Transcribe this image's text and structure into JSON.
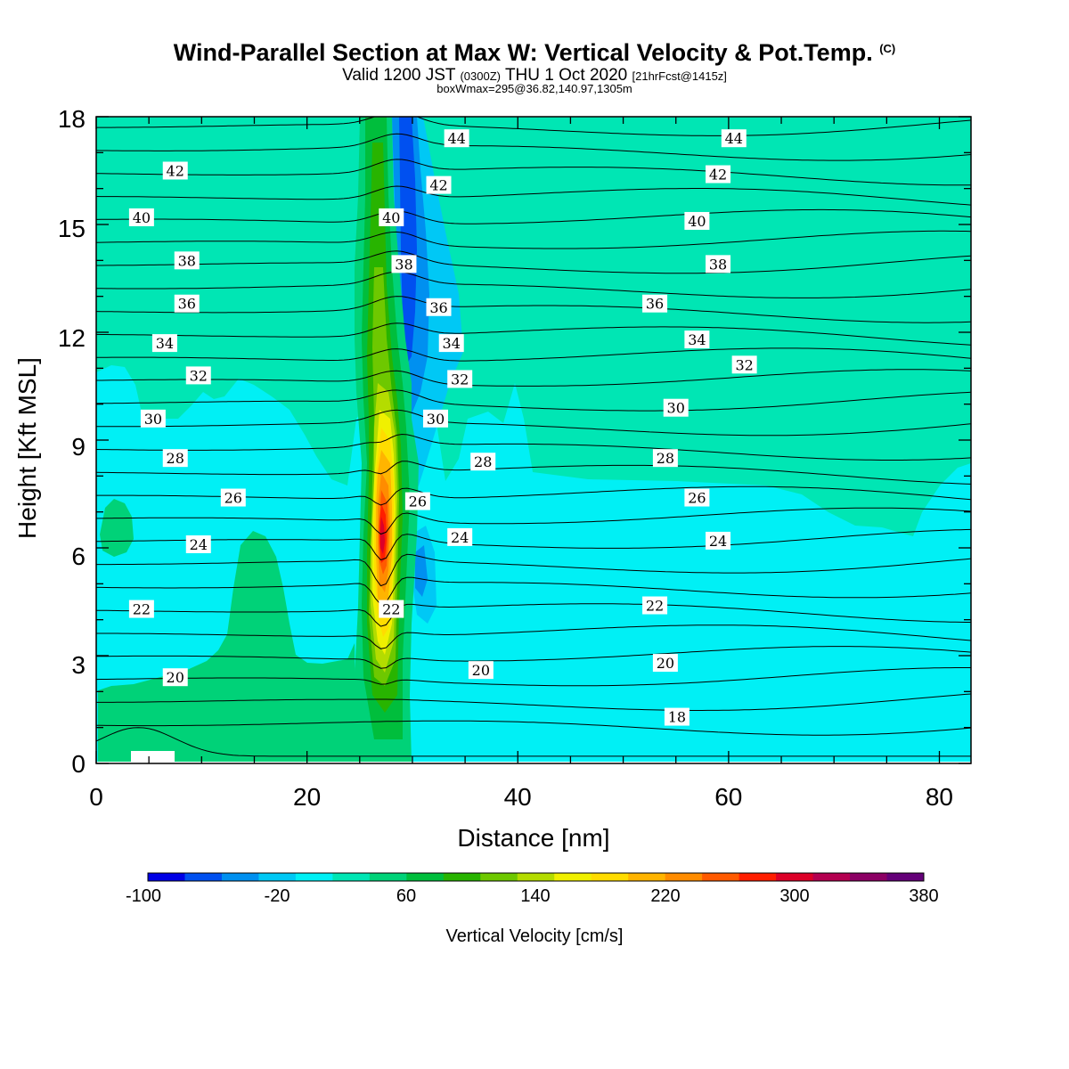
{
  "title": {
    "line1": "Wind-Parallel Section at Max W: Vertical Velocity & Pot.Temp.",
    "line1_suffix": "(C)",
    "line2_a": "Valid 1200 JST",
    "line2_b": "(0300Z)",
    "line2_c": "THU 1 Oct 2020",
    "line2_d": "[21hrFcst@1415z]",
    "line3": "boxWmax=295@36.82,140.97,1305m"
  },
  "chart_data": {
    "type": "contour",
    "xlabel": "Distance [nm]",
    "ylabel": "Height [Kft MSL]",
    "xlim": [
      0,
      83
    ],
    "ylim": [
      0,
      18
    ],
    "xticks": [
      "0",
      "20",
      "40",
      "60",
      "80"
    ],
    "yticks": [
      "0",
      "3",
      "6",
      "9",
      "12",
      "15",
      "18"
    ],
    "fill_variable": "Vertical Velocity [cm/s]",
    "colorbar": {
      "label": "Vertical Velocity [cm/s]",
      "tick_labels": [
        "-100",
        "-20",
        "60",
        "140",
        "220",
        "300",
        "380"
      ],
      "colors": [
        "#0000e6",
        "#0050f0",
        "#0090f0",
        "#00c8f5",
        "#00f0f5",
        "#00e6b4",
        "#00d278",
        "#00be3c",
        "#28b400",
        "#6ec800",
        "#b4dc00",
        "#f0f000",
        "#ffdc00",
        "#ffb400",
        "#ff8c00",
        "#ff5a00",
        "#ff1e00",
        "#dc0028",
        "#b40050",
        "#8c0064",
        "#640078"
      ]
    },
    "contour_variable": "Potential Temperature",
    "contour_labels": [
      {
        "x": 34.2,
        "y": 17.4,
        "v": "44"
      },
      {
        "x": 60.5,
        "y": 17.4,
        "v": "44"
      },
      {
        "x": 7.5,
        "y": 16.5,
        "v": "42"
      },
      {
        "x": 32.5,
        "y": 16.1,
        "v": "42"
      },
      {
        "x": 59.0,
        "y": 16.4,
        "v": "42"
      },
      {
        "x": 4.3,
        "y": 15.2,
        "v": "40"
      },
      {
        "x": 28.0,
        "y": 15.2,
        "v": "40"
      },
      {
        "x": 57.0,
        "y": 15.1,
        "v": "40"
      },
      {
        "x": 8.6,
        "y": 14.0,
        "v": "38"
      },
      {
        "x": 29.2,
        "y": 13.9,
        "v": "38"
      },
      {
        "x": 59.0,
        "y": 13.9,
        "v": "38"
      },
      {
        "x": 8.6,
        "y": 12.8,
        "v": "36"
      },
      {
        "x": 32.5,
        "y": 12.7,
        "v": "36"
      },
      {
        "x": 53.0,
        "y": 12.8,
        "v": "36"
      },
      {
        "x": 6.5,
        "y": 11.7,
        "v": "34"
      },
      {
        "x": 33.7,
        "y": 11.7,
        "v": "34"
      },
      {
        "x": 57.0,
        "y": 11.8,
        "v": "34"
      },
      {
        "x": 9.7,
        "y": 10.8,
        "v": "32"
      },
      {
        "x": 34.5,
        "y": 10.7,
        "v": "32"
      },
      {
        "x": 61.5,
        "y": 11.1,
        "v": "32"
      },
      {
        "x": 5.4,
        "y": 9.6,
        "v": "30"
      },
      {
        "x": 32.2,
        "y": 9.6,
        "v": "30"
      },
      {
        "x": 55.0,
        "y": 9.9,
        "v": "30"
      },
      {
        "x": 7.5,
        "y": 8.5,
        "v": "28"
      },
      {
        "x": 36.7,
        "y": 8.4,
        "v": "28"
      },
      {
        "x": 54.0,
        "y": 8.5,
        "v": "28"
      },
      {
        "x": 13.0,
        "y": 7.4,
        "v": "26"
      },
      {
        "x": 30.5,
        "y": 7.3,
        "v": "26"
      },
      {
        "x": 57.0,
        "y": 7.4,
        "v": "26"
      },
      {
        "x": 9.7,
        "y": 6.1,
        "v": "24"
      },
      {
        "x": 34.5,
        "y": 6.3,
        "v": "24"
      },
      {
        "x": 59.0,
        "y": 6.2,
        "v": "24"
      },
      {
        "x": 4.3,
        "y": 4.3,
        "v": "22"
      },
      {
        "x": 28.0,
        "y": 4.3,
        "v": "22"
      },
      {
        "x": 53.0,
        "y": 4.4,
        "v": "22"
      },
      {
        "x": 7.5,
        "y": 2.4,
        "v": "20"
      },
      {
        "x": 36.5,
        "y": 2.6,
        "v": "20"
      },
      {
        "x": 54.0,
        "y": 2.8,
        "v": "20"
      },
      {
        "x": 55.1,
        "y": 1.3,
        "v": "18"
      }
    ]
  }
}
